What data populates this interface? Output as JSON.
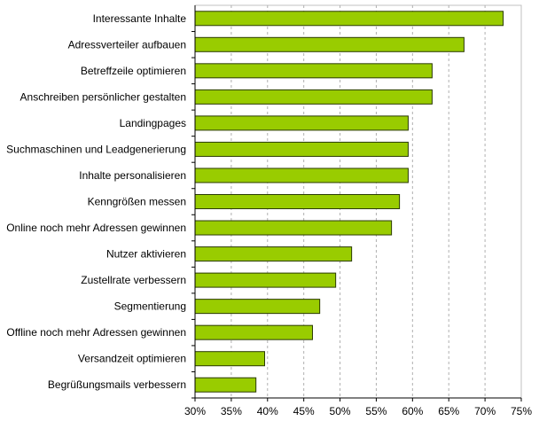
{
  "chart_data": {
    "type": "bar",
    "orientation": "horizontal",
    "categories": [
      "Interessante Inhalte",
      "Adressverteiler aufbauen",
      "Betreffzeile optimieren",
      "Anschreiben persönlicher gestalten",
      "Landingpages",
      "Suchmaschinen und Leadgenerierung",
      "Inhalte personalisieren",
      "Kenngrößen messen",
      "Online noch mehr Adressen gewinnen",
      "Nutzer aktivieren",
      "Zustellrate verbessern",
      "Segmentierung",
      "Offline noch mehr Adressen gewinnen",
      "Versandzeit optimieren",
      "Begrüßungsmails verbessern"
    ],
    "values": [
      72.5,
      67.1,
      62.7,
      62.7,
      59.4,
      59.4,
      59.4,
      58.2,
      57.1,
      51.6,
      49.4,
      47.2,
      46.2,
      39.6,
      38.4
    ],
    "xlim": [
      30,
      75
    ],
    "xticks": [
      "30%",
      "35%",
      "40%",
      "45%",
      "50%",
      "55%",
      "60%",
      "65%",
      "70%",
      "75%"
    ],
    "grid": "vertical dashed",
    "colors": {
      "bar": "#99cc00",
      "bar_border": "#2a3a00",
      "grid": "#b0b0b0",
      "frame": "#c0c0c0"
    }
  }
}
